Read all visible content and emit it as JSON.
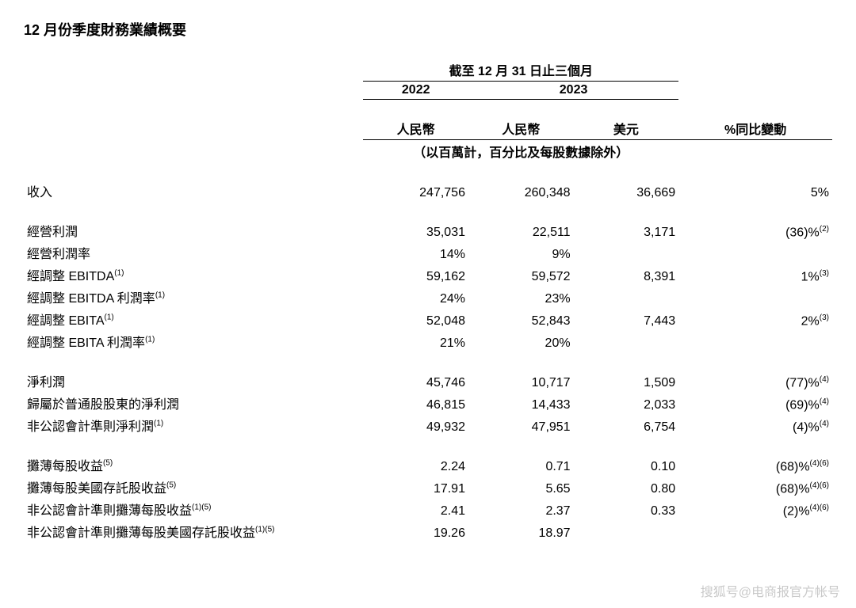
{
  "title": "12 月份季度財務業績概要",
  "header": {
    "period": "截至 12 月 31 日止三個月",
    "year1": "2022",
    "year2": "2023",
    "curr1": "人民幣",
    "curr2": "人民幣",
    "curr3": "美元",
    "change": "%同比變動",
    "note": "（以百萬計，百分比及每股數據除外）"
  },
  "rows": [
    {
      "label": "收入",
      "c1": "247,756",
      "c2": "260,348",
      "c3": "36,669",
      "c4": "5%",
      "sup": ""
    },
    {
      "spacer": true
    },
    {
      "label": "經營利潤",
      "c1": "35,031",
      "c2": "22,511",
      "c3": "3,171",
      "c4": "(36)%",
      "sup": "(2)"
    },
    {
      "label": "經營利潤率",
      "c1": "14%",
      "c2": "9%",
      "c3": "",
      "c4": "",
      "sup": ""
    },
    {
      "label": "經調整 EBITDA",
      "labelsup": "(1)",
      "c1": "59,162",
      "c2": "59,572",
      "c3": "8,391",
      "c4": "1%",
      "sup": "(3)"
    },
    {
      "label": "經調整 EBITDA 利潤率",
      "labelsup": "(1)",
      "c1": "24%",
      "c2": "23%",
      "c3": "",
      "c4": "",
      "sup": ""
    },
    {
      "label": "經調整 EBITA",
      "labelsup": "(1)",
      "c1": "52,048",
      "c2": "52,843",
      "c3": "7,443",
      "c4": "2%",
      "sup": "(3)"
    },
    {
      "label": "經調整 EBITA 利潤率",
      "labelsup": "(1)",
      "c1": "21%",
      "c2": "20%",
      "c3": "",
      "c4": "",
      "sup": ""
    },
    {
      "spacer": true
    },
    {
      "label": "淨利潤",
      "c1": "45,746",
      "c2": "10,717",
      "c3": "1,509",
      "c4": "(77)%",
      "sup": "(4)"
    },
    {
      "label": "歸屬於普通股股東的淨利潤",
      "c1": "46,815",
      "c2": "14,433",
      "c3": "2,033",
      "c4": "(69)%",
      "sup": "(4)"
    },
    {
      "label": "非公認會計準則淨利潤",
      "labelsup": "(1)",
      "c1": "49,932",
      "c2": "47,951",
      "c3": "6,754",
      "c4": "(4)%",
      "sup": "(4)"
    },
    {
      "spacer": true
    },
    {
      "label": "攤薄每股收益",
      "labelsup": "(5)",
      "c1": "2.24",
      "c2": "0.71",
      "c3": "0.10",
      "c4": "(68)%",
      "sup": "(4)(6)"
    },
    {
      "label": "攤薄每股美國存託股收益",
      "labelsup": "(5)",
      "c1": "17.91",
      "c2": "5.65",
      "c3": "0.80",
      "c4": "(68)%",
      "sup": "(4)(6)"
    },
    {
      "label": "非公認會計準則攤薄每股收益",
      "labelsup": "(1)(5)",
      "c1": "2.41",
      "c2": "2.37",
      "c3": "0.33",
      "c4": "(2)%",
      "sup": "(4)(6)"
    },
    {
      "label": "非公認會計準則攤薄每股美國存託股收益",
      "labelsup": "(1)(5)",
      "c1": "19.26",
      "c2": "18.97",
      "c3": "",
      "c4": "",
      "sup": ""
    }
  ],
  "watermark": "搜狐号@电商报官方帐号"
}
